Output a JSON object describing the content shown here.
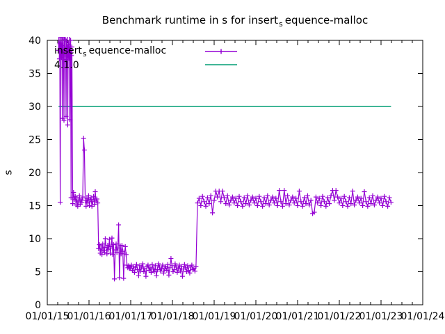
{
  "title": {
    "prefix": "Benchmark runtime in s for insert",
    "subscript": "s",
    "suffix": "equence-malloc"
  },
  "legend": {
    "series1": {
      "prefix": "insert",
      "subscript": "s",
      "suffix": "equence-malloc",
      "color": "#9400d3"
    },
    "series2": {
      "label": "4.1.0",
      "color": "#009e73"
    }
  },
  "chart_data": {
    "type": "line",
    "title": "Benchmark runtime in s for insert_sequence-malloc",
    "xlabel": "",
    "ylabel": "s",
    "xlim": [
      2015.0,
      2024.0
    ],
    "ylim": [
      0,
      40
    ],
    "x_tick_labels": [
      "01/01/15",
      "01/01/16",
      "01/01/17",
      "01/01/18",
      "01/01/19",
      "01/01/20",
      "01/01/21",
      "01/01/22",
      "01/01/23",
      "01/01/24"
    ],
    "x_minor_ticks_per_interval": 3,
    "y_ticks": [
      0,
      5,
      10,
      15,
      20,
      25,
      30,
      35,
      40
    ],
    "grid": false,
    "legend_position": "top-left-inside",
    "series": [
      {
        "name": "insert_sequence-malloc",
        "color": "#9400d3",
        "style": "linespoints",
        "marker": "plus",
        "segments": [
          {
            "x_start": 2015.27,
            "x_step": 0.01,
            "values": [
              38.5,
              41,
              37.2,
              39.5,
              15.5,
              41,
              38.8,
              37.4,
              40.5,
              28.2,
              39.2,
              41,
              37.8,
              27.9,
              40.2,
              38.4,
              41,
              37.1,
              28.5,
              39.8,
              37.6,
              40.8,
              27.2,
              38.9,
              39.4,
              37.3,
              41,
              28,
              38.2,
              40,
              16.2,
              37.7,
              39
            ]
          },
          {
            "x_start": 2015.61,
            "x_step": 0.02,
            "values": [
              15.3,
              17,
              15.9,
              16.4,
              15.1,
              16.2,
              14.9,
              15.7,
              16.5,
              15.2,
              16,
              15.5,
              16.3,
              25.2,
              23.4,
              15.8,
              14.9,
              16.1,
              15.4,
              16.5,
              15,
              15.9,
              16.2,
              14.9,
              15.6,
              16.4,
              15.2,
              17.1,
              15.7,
              16,
              15.4
            ]
          },
          {
            "x_start": 2016.23,
            "x_step": 0.02,
            "values": [
              8.5,
              9.1,
              7.8,
              8.9,
              7.6,
              9.2,
              8.2,
              7.9,
              10,
              8.7,
              7.7,
              9,
              8.4,
              9.9,
              7.8,
              8.8,
              10.1,
              7.6,
              9.1,
              3.9,
              8.3,
              9.2,
              7.9,
              8.6,
              12.1,
              4.1,
              8.9,
              7.7,
              9,
              8.1,
              4,
              7.8,
              8.8,
              7.6,
              6,
              5.6,
              5.9,
              5.5
            ]
          },
          {
            "x_start": 2016.99,
            "x_step": 0.025,
            "values": [
              5.5,
              6,
              5.2,
              5.8,
              4.9,
              5.6,
              6.1,
              5.3,
              4.4,
              5.9,
              5.1,
              5.7,
              6.2,
              5,
              5.5,
              4.3,
              5.8,
              6,
              5.2,
              5.6,
              4.9,
              6.1,
              5.4,
              5,
              5.9,
              4.4,
              5.3,
              6.2,
              5.7,
              5.1,
              5.5,
              6,
              4.8,
              5.4,
              5.8,
              5.2,
              6.1,
              4.5,
              5.6,
              7,
              5.9,
              5,
              5.3,
              6.2,
              5.7,
              4.9,
              5.5,
              6,
              5.1,
              5.8,
              4.3,
              5.4,
              6.1,
              5.6,
              5,
              5.9,
              5.2,
              4.8,
              5.7,
              6,
              5.3,
              5.5,
              5.1,
              5.8
            ]
          },
          {
            "x_start": 2018.6,
            "x_step": 0.04,
            "values": [
              15.4,
              16.1,
              15.0,
              16.4,
              15.6,
              14.9,
              16.2,
              15.3,
              16.5,
              13.9,
              15.8,
              17.2,
              16.3,
              17.2,
              15.6,
              17.2,
              16.2,
              15.3,
              16.5,
              15.1,
              15.8,
              16.3,
              15.4,
              16.1,
              15.0,
              16.4,
              15.6,
              14.9,
              16.2,
              15.3,
              16.5,
              15.1,
              15.8,
              16.3,
              15.4,
              16.1,
              15.0,
              16.4,
              15.6,
              14.9,
              16.2,
              15.3,
              16.5,
              15.1,
              15.8,
              16.3,
              15.4,
              16.1,
              15.0,
              17.3,
              15.6,
              14.9,
              17.3,
              15.3,
              16.5,
              15.1,
              15.8,
              16.3,
              15.4,
              16.1,
              15.0,
              17.2,
              15.6,
              14.9,
              16.2,
              15.3,
              16.5,
              15.1,
              15.8,
              13.8,
              14.0,
              16.3,
              15.4,
              16.1,
              15.0,
              16.4,
              15.6,
              14.9,
              16.2,
              15.3,
              16.5,
              17.3,
              15.8,
              17.3,
              16.3,
              15.4,
              16.1,
              15.0,
              16.4,
              15.6,
              14.9,
              16.2,
              15.3,
              17.2,
              15.1,
              15.8,
              16.3,
              15.4,
              16.1,
              15.0,
              17.1,
              15.6,
              14.9,
              16.2,
              15.3,
              16.5,
              15.1,
              15.8,
              16.3,
              15.4,
              16.1,
              15.0,
              16.4,
              15.6,
              14.9,
              16.2,
              15.5
            ]
          }
        ]
      },
      {
        "name": "4.1.0",
        "color": "#009e73",
        "style": "line",
        "points": [
          [
            2015.27,
            30
          ],
          [
            2023.24,
            30
          ]
        ]
      }
    ]
  }
}
